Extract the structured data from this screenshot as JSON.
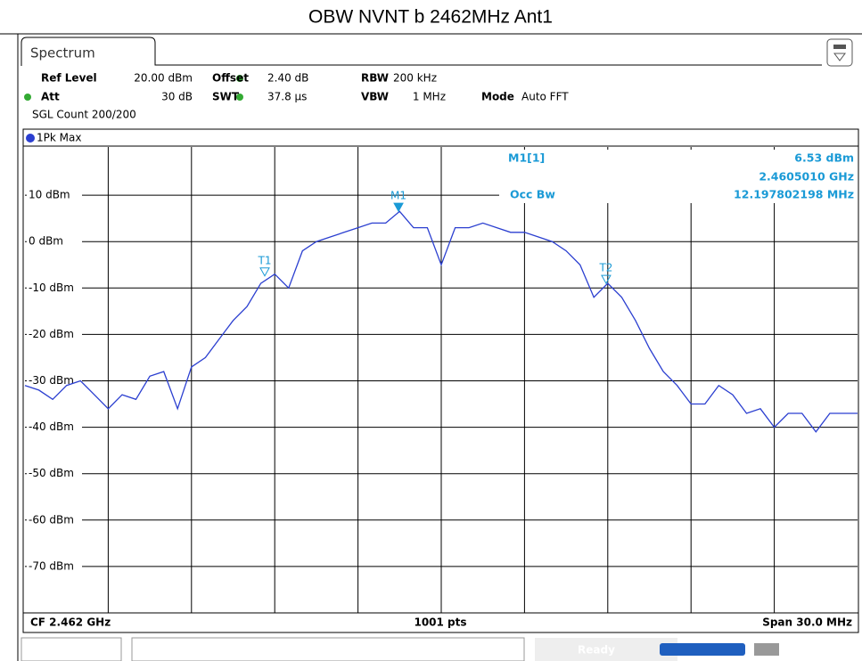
{
  "chart_data": {
    "type": "line",
    "title": "OBW NVNT b 2462MHz Ant1",
    "tab": "Spectrum",
    "settings": [
      [
        "Ref Level",
        "20.00 dBm"
      ],
      [
        "Offset",
        "2.40 dB"
      ],
      [
        "RBW",
        "200 kHz"
      ],
      [
        "Att",
        "30 dB"
      ],
      [
        "SWT",
        "37.8 µs"
      ],
      [
        "VBW",
        "1 MHz"
      ],
      [
        "Mode",
        "Auto FFT"
      ]
    ],
    "sweep_count": "SGL Count 200/200",
    "trace_label": "1Pk Max",
    "marker_info": {
      "name": "M1[1]",
      "level": "6.53 dBm",
      "frequency": "2.4605010 GHz",
      "function": "Occ Bw",
      "bandwidth": "12.197802198 MHz"
    },
    "footer": {
      "center_freq": "CF 2.462 GHz",
      "points": "1001 pts",
      "span": "Span 30.0 MHz"
    },
    "status": "Ready",
    "xlim": [
      2447,
      2477
    ],
    "xticks": [
      2450,
      2453,
      2456,
      2459,
      2462,
      2465,
      2468,
      2471,
      2474
    ],
    "ylim": [
      -80,
      20
    ],
    "yticks": [
      {
        "value": 10,
        "label": "10 dBm"
      },
      {
        "value": 0,
        "label": "0 dBm"
      },
      {
        "value": -10,
        "label": "-10 dBm"
      },
      {
        "value": -20,
        "label": "-20 dBm"
      },
      {
        "value": -30,
        "label": "-30 dBm"
      },
      {
        "value": -40,
        "label": "-40 dBm"
      },
      {
        "value": -50,
        "label": "-50 dBm"
      },
      {
        "value": -60,
        "label": "-60 dBm"
      },
      {
        "value": -70,
        "label": "-70 dBm"
      }
    ],
    "grid": true,
    "x": [
      2447,
      2447.5,
      2448,
      2448.5,
      2449,
      2449.5,
      2450,
      2450.5,
      2451,
      2451.5,
      2452,
      2452.5,
      2453,
      2453.5,
      2454,
      2454.5,
      2455,
      2455.5,
      2456,
      2456.5,
      2457,
      2457.5,
      2458,
      2458.5,
      2459,
      2459.5,
      2460,
      2460.5,
      2461,
      2461.5,
      2462,
      2462.5,
      2463,
      2463.5,
      2464,
      2464.5,
      2465,
      2465.5,
      2466,
      2466.5,
      2467,
      2467.5,
      2468,
      2468.5,
      2469,
      2469.5,
      2470,
      2470.5,
      2471,
      2471.5,
      2472,
      2472.5,
      2473,
      2473.5,
      2474,
      2474.5,
      2475,
      2475.5,
      2476,
      2476.5,
      2477
    ],
    "series": [
      {
        "name": "1Pk Max",
        "color": "#2b3fd0",
        "values": [
          -31,
          -32,
          -34,
          -31,
          -30,
          -33,
          -36,
          -33,
          -34,
          -29,
          -28,
          -36,
          -27,
          -25,
          -21,
          -17,
          -14,
          -9,
          -7,
          -10,
          -2,
          0,
          1,
          2,
          3,
          4,
          4,
          6.5,
          3,
          3,
          -5,
          3,
          3,
          4,
          3,
          2,
          2,
          1,
          0,
          -2,
          -5,
          -12,
          -9,
          -12,
          -17,
          -23,
          -28,
          -31,
          -35,
          -35,
          -31,
          -33,
          -37,
          -36,
          -40,
          -37,
          -37,
          -41,
          -37,
          -37,
          -37
        ]
      }
    ],
    "markers": [
      {
        "label": "M1",
        "x": 2460.46,
        "y": 6.53
      },
      {
        "label": "T1",
        "x": 2455.64,
        "y": -7.4
      },
      {
        "label": "T2",
        "x": 2467.94,
        "y": -9
      }
    ],
    "marker_color": "#1a9ad6"
  }
}
